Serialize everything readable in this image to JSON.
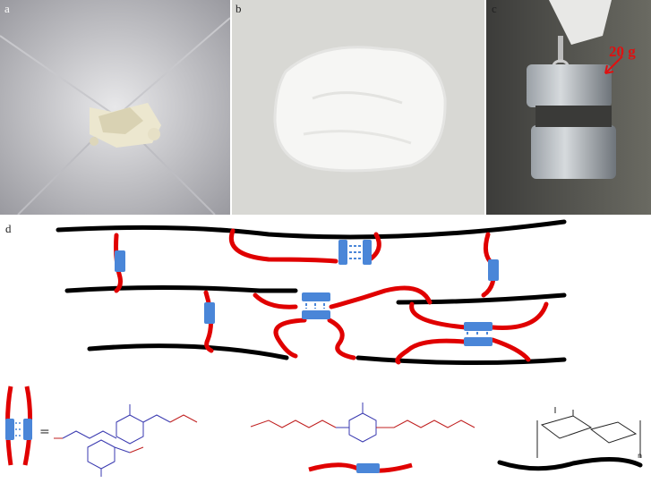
{
  "panels": {
    "a": {
      "label": "a"
    },
    "b": {
      "label": "b"
    },
    "c": {
      "label": "c",
      "weight": "20 g"
    },
    "d": {
      "label": "d"
    }
  },
  "legend": {
    "equals": "=",
    "polymer_unit_suffix": "n"
  },
  "colors": {
    "polymer_chain": "#000000",
    "linker_chain": "#e00000",
    "upy_block": "#4a86d8",
    "chem_blue": "#3a3ab0",
    "chem_red": "#c02020",
    "weight_label": "#e01010"
  },
  "icons": [
    "photo-powder",
    "photo-film",
    "photo-weights",
    "hydrogen-bond-block",
    "cellulose-structure"
  ]
}
